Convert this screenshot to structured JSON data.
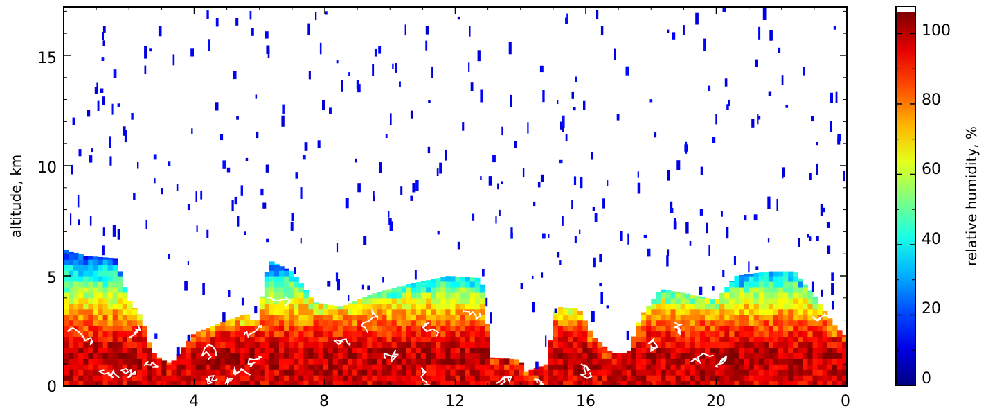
{
  "chart_data": {
    "type": "heatmap",
    "title": "",
    "xlabel": "",
    "ylabel": "altitude, km",
    "x_ticks": [
      "4",
      "8",
      "12",
      "16",
      "20",
      "0"
    ],
    "y_ticks": [
      "0",
      "5",
      "10",
      "15"
    ],
    "ylim": [
      0,
      17.2
    ],
    "x_range_hours": [
      0,
      24
    ],
    "grid": false,
    "colorbar": {
      "label": "relative humidity, %",
      "range": [
        0,
        106
      ],
      "ticks": [
        "0",
        "20",
        "40",
        "60",
        "80",
        "100"
      ],
      "colormap": "jet",
      "over_color": "#ffffff"
    },
    "contour_color": "#ffffff",
    "humid_layer_top_km": [
      {
        "x": 0.0,
        "top": 6.2
      },
      {
        "x": 0.7,
        "top": 5.9
      },
      {
        "x": 1.6,
        "top": 5.8
      },
      {
        "x": 2.0,
        "top": 3.9
      },
      {
        "x": 2.4,
        "top": 3.1
      },
      {
        "x": 2.7,
        "top": 1.6
      },
      {
        "x": 3.0,
        "top": 1.2
      },
      {
        "x": 3.3,
        "top": 1.0
      },
      {
        "x": 4.0,
        "top": 2.4
      },
      {
        "x": 5.6,
        "top": 3.3
      },
      {
        "x": 5.9,
        "top": 2.8
      },
      {
        "x": 6.3,
        "top": 5.7
      },
      {
        "x": 7.0,
        "top": 5.2
      },
      {
        "x": 7.7,
        "top": 3.8
      },
      {
        "x": 8.5,
        "top": 3.6
      },
      {
        "x": 9.5,
        "top": 4.2
      },
      {
        "x": 10.5,
        "top": 4.6
      },
      {
        "x": 11.8,
        "top": 5.0
      },
      {
        "x": 12.8,
        "top": 4.9
      },
      {
        "x": 13.1,
        "top": 1.3
      },
      {
        "x": 14.0,
        "top": 1.2
      },
      {
        "x": 14.1,
        "top": 0.6
      },
      {
        "x": 14.8,
        "top": 1.0
      },
      {
        "x": 15.1,
        "top": 3.6
      },
      {
        "x": 15.8,
        "top": 3.5
      },
      {
        "x": 16.2,
        "top": 2.3
      },
      {
        "x": 16.8,
        "top": 1.5
      },
      {
        "x": 17.3,
        "top": 1.5
      },
      {
        "x": 17.7,
        "top": 3.2
      },
      {
        "x": 18.3,
        "top": 4.4
      },
      {
        "x": 19.1,
        "top": 4.2
      },
      {
        "x": 20.0,
        "top": 3.9
      },
      {
        "x": 20.6,
        "top": 5.0
      },
      {
        "x": 21.6,
        "top": 5.2
      },
      {
        "x": 22.4,
        "top": 5.2
      },
      {
        "x": 23.0,
        "top": 4.1
      },
      {
        "x": 23.6,
        "top": 2.8
      },
      {
        "x": 24.0,
        "top": 2.2
      }
    ],
    "rh_profile_by_altitude": [
      {
        "alt": 0.0,
        "rh": 96
      },
      {
        "alt": 1.5,
        "rh": 100
      },
      {
        "alt": 2.5,
        "rh": 88
      },
      {
        "alt": 3.5,
        "rh": 72
      },
      {
        "alt": 4.3,
        "rh": 55
      },
      {
        "alt": 5.0,
        "rh": 42
      },
      {
        "alt": 5.8,
        "rh": 30
      }
    ]
  }
}
